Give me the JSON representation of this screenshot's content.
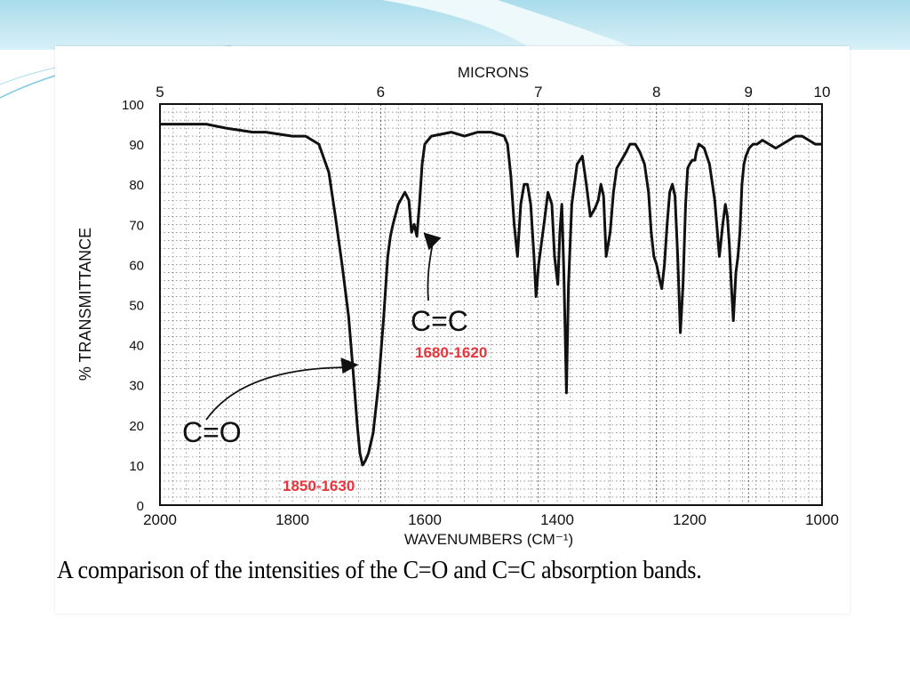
{
  "slide": {
    "caption": "A comparison of the intensities of the C=O and C=C absorption bands.",
    "colors": {
      "top_bar": "#bfe6f2",
      "accent_line": "#7fc9e0",
      "highlight": "#e8343a",
      "ink": "#111111"
    }
  },
  "chart_data": {
    "type": "line",
    "xlabel": "WAVENUMBERS (CM⁻¹)",
    "ylabel": "% TRANSMITTANCE",
    "top_axis_label": "MICRONS",
    "x_axis": {
      "range": [
        2000,
        1000
      ],
      "reversed": true,
      "ticks": [
        2000,
        1800,
        1600,
        1400,
        1200,
        1000
      ]
    },
    "y_axis": {
      "range": [
        0,
        100
      ],
      "ticks": [
        0,
        10,
        20,
        30,
        40,
        50,
        60,
        70,
        80,
        90,
        100
      ]
    },
    "top_axis": {
      "ticks": [
        5,
        6,
        7,
        8,
        9,
        10
      ]
    },
    "grid": true,
    "series": [
      {
        "x": [
          2000,
          1960,
          1930,
          1900,
          1860,
          1840,
          1800,
          1780,
          1760,
          1745,
          1735,
          1725,
          1715,
          1708,
          1702,
          1698,
          1694,
          1690,
          1685,
          1678,
          1670,
          1662,
          1656,
          1652,
          1648,
          1640,
          1630,
          1624,
          1620,
          1616,
          1612,
          1608,
          1604,
          1600,
          1590,
          1560,
          1540,
          1520,
          1500,
          1480,
          1475,
          1470,
          1465,
          1460,
          1455,
          1450,
          1445,
          1440,
          1435,
          1432,
          1428,
          1424,
          1420,
          1414,
          1408,
          1404,
          1399,
          1396,
          1393,
          1390,
          1386,
          1383,
          1378,
          1370,
          1362,
          1356,
          1350,
          1343,
          1338,
          1334,
          1330,
          1326,
          1320,
          1315,
          1310,
          1303,
          1296,
          1290,
          1282,
          1275,
          1268,
          1262,
          1258,
          1254,
          1250,
          1245,
          1242,
          1238,
          1234,
          1230,
          1226,
          1222,
          1218,
          1214,
          1210,
          1206,
          1203,
          1200,
          1196,
          1192,
          1190,
          1186,
          1178,
          1170,
          1162,
          1155,
          1150,
          1146,
          1143,
          1140,
          1137,
          1134,
          1130,
          1127,
          1124,
          1121,
          1118,
          1115,
          1110,
          1104,
          1098,
          1090,
          1080,
          1070,
          1060,
          1050,
          1040,
          1030,
          1020,
          1010,
          1000
        ],
        "y": [
          95,
          95,
          95,
          94,
          93,
          93,
          92,
          92,
          90,
          83,
          72,
          60,
          47,
          33,
          20,
          13,
          10,
          11,
          13,
          18,
          30,
          47,
          62,
          67,
          70,
          75,
          78,
          76,
          68,
          70,
          67,
          75,
          85,
          90,
          92,
          93,
          92,
          93,
          93,
          92,
          90,
          82,
          70,
          62,
          75,
          80,
          80,
          75,
          62,
          52,
          60,
          65,
          70,
          78,
          75,
          62,
          55,
          68,
          75,
          58,
          28,
          55,
          75,
          85,
          87,
          80,
          72,
          74,
          76,
          80,
          77,
          62,
          68,
          78,
          84,
          86,
          88,
          90,
          90,
          88,
          85,
          78,
          68,
          62,
          60,
          56,
          54,
          60,
          70,
          78,
          80,
          77,
          62,
          43,
          55,
          75,
          84,
          85,
          86,
          86,
          88,
          90,
          89,
          85,
          76,
          62,
          70,
          75,
          72,
          65,
          55,
          46,
          58,
          62,
          68,
          80,
          85,
          87,
          89,
          90,
          90,
          91,
          90,
          89,
          90,
          91,
          92,
          92,
          91,
          90,
          90
        ]
      }
    ],
    "annotations": [
      {
        "text": "C=O",
        "range_text": "1850-1630",
        "points_to": {
          "x": 1700,
          "y": 35
        }
      },
      {
        "text": "C=C",
        "range_text": "1680-1620",
        "points_to": {
          "x": 1610,
          "y": 68
        }
      }
    ]
  }
}
